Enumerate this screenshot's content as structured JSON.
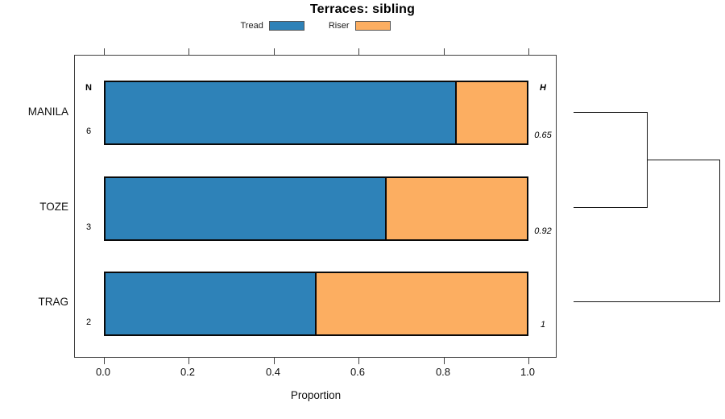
{
  "title": "Terraces: sibling",
  "legend": {
    "items": [
      {
        "label": "Tread",
        "color_key": "tread"
      },
      {
        "label": "Riser",
        "color_key": "riser"
      }
    ]
  },
  "columns": {
    "n_header": "N",
    "h_header": "H"
  },
  "rows": [
    {
      "category": "MANILA",
      "n": "6",
      "h": "0.65"
    },
    {
      "category": "TOZE",
      "n": "3",
      "h": "0.92"
    },
    {
      "category": "TRAG",
      "n": "2",
      "h": "1"
    }
  ],
  "x_axis": {
    "label": "Proportion",
    "ticks": [
      "0.0",
      "0.2",
      "0.4",
      "0.6",
      "0.8",
      "1.0"
    ]
  },
  "colors": {
    "tread": "#2e82b8",
    "riser": "#fcae61",
    "bar_border": "#0a0a0a",
    "box_border": "#3f3f3f",
    "dendrogram_line": "#161616"
  },
  "chart_data": {
    "type": "bar",
    "orientation": "horizontal",
    "stacked": true,
    "title": "Terraces: sibling",
    "xlabel": "Proportion",
    "xlim": [
      0,
      1
    ],
    "grid": false,
    "legend_position": "top",
    "categories": [
      "MANILA",
      "TOZE",
      "TRAG"
    ],
    "series": [
      {
        "name": "Tread",
        "values": [
          0.8333,
          0.6667,
          0.5
        ]
      },
      {
        "name": "Riser",
        "values": [
          0.1667,
          0.3333,
          0.5
        ]
      }
    ],
    "annotations": {
      "N": [
        6,
        3,
        2
      ],
      "H": [
        0.65,
        0.92,
        1
      ]
    },
    "dendrogram": {
      "side": "right",
      "merges": [
        {
          "members": [
            "MANILA",
            "TOZE"
          ]
        },
        {
          "members": [
            "MANILA+TOZE",
            "TRAG"
          ]
        }
      ]
    }
  }
}
